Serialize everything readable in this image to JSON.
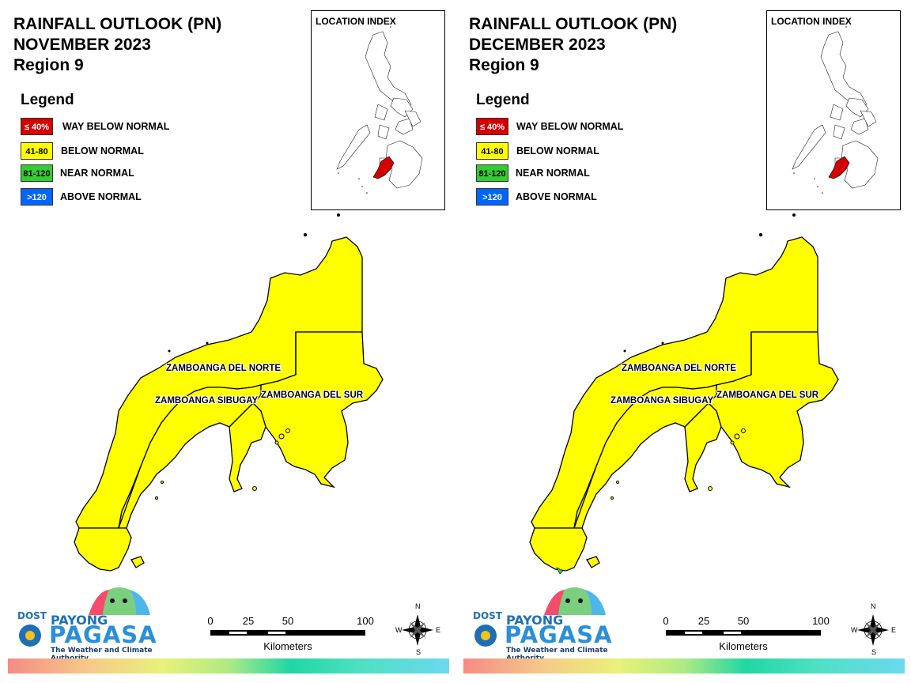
{
  "panels": [
    {
      "title_line1": "RAINFALL OUTLOOK (PN)",
      "title_line2": "NOVEMBER 2023",
      "title_line3": "Region 9",
      "provinces": [
        {
          "name": "ZAMBOANGA DEL NORTE",
          "category": "41-80"
        },
        {
          "name": "ZAMBOANGA SIBUGAY",
          "category": "41-80"
        },
        {
          "name": "ZAMBOANGA DEL SUR",
          "category": "41-80"
        }
      ]
    },
    {
      "title_line1": "RAINFALL OUTLOOK (PN)",
      "title_line2": "DECEMBER 2023",
      "title_line3": "Region 9",
      "provinces": [
        {
          "name": "ZAMBOANGA DEL NORTE",
          "category": "41-80"
        },
        {
          "name": "ZAMBOANGA SIBUGAY",
          "category": "41-80"
        },
        {
          "name": "ZAMBOANGA DEL SUR",
          "category": "41-80"
        }
      ]
    }
  ],
  "legend": {
    "title": "Legend",
    "items": [
      {
        "range": "≤ 40%",
        "label": "WAY BELOW NORMAL",
        "color": "#d40000",
        "text_color": "#ffffff"
      },
      {
        "range": "41-80",
        "label": "BELOW NORMAL",
        "color": "#ffff00",
        "text_color": "#000000"
      },
      {
        "range": "81-120",
        "label": "NEAR NORMAL",
        "color": "#33cc33",
        "text_color": "#000000"
      },
      {
        "range": ">120",
        "label": "ABOVE NORMAL",
        "color": "#0066ff",
        "text_color": "#ffffff"
      }
    ]
  },
  "inset": {
    "title": "LOCATION INDEX",
    "highlight_color": "#d40000"
  },
  "scale": {
    "ticks": [
      "0",
      "25",
      "50",
      "100"
    ],
    "unit": "Kilometers"
  },
  "compass": {
    "n": "N",
    "e": "E",
    "s": "S",
    "w": "W"
  },
  "logo": {
    "dost": "DOST",
    "payong": "PAYONG",
    "pagasa": "PAGASA",
    "tagline": "The Weather and Climate Authority"
  },
  "colors": {
    "map_fill": "#ffff00",
    "outline": "#000000"
  }
}
